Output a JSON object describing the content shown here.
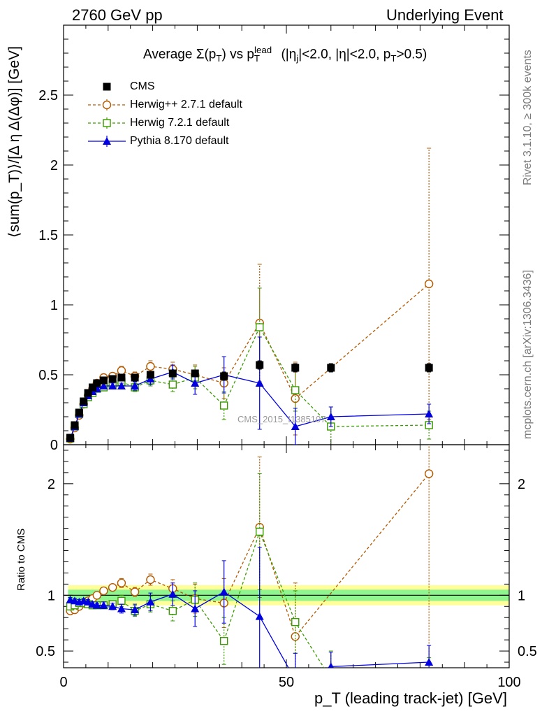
{
  "header": {
    "left": "2760 GeV pp",
    "right": "Underlying Event"
  },
  "side_labels": {
    "rivet": "Rivet 3.1.10, ≥ 300k events",
    "mcplots": "mcplots.cern.ch [arXiv:1306.3436]"
  },
  "watermark": "CMS_2015_I1385107",
  "titles": {
    "plot_title_pre": "Average Σ(p",
    "plot_title_post": ") vs p",
    "plot_title_tail": " (|η",
    "plot_title_tail2": "|<2.0, |η|<2.0, p",
    "plot_title_tail3": ">0.5)",
    "ylabel_main": "⟨sum(p_T)⟩/[Δ η Δ(Δφ)] [GeV]",
    "ylabel_ratio": "Ratio to CMS",
    "xlabel": "p_T (leading track-jet) [GeV]"
  },
  "legend": [
    {
      "label": "CMS",
      "color": "#000000",
      "marker": "square-filled",
      "style": "none"
    },
    {
      "label": "Herwig++ 2.7.1 default",
      "color": "#b35900",
      "marker": "circle-open",
      "style": "dashed"
    },
    {
      "label": "Herwig 7.2.1 default",
      "color": "#3a9a00",
      "marker": "square-open",
      "style": "dashed"
    },
    {
      "label": "Pythia 8.170 default",
      "color": "#0000e0",
      "marker": "triangle-filled",
      "style": "solid"
    }
  ],
  "chart_data": {
    "type": "line",
    "x": [
      1.5,
      2.5,
      3.5,
      4.5,
      5.5,
      6.5,
      7.5,
      9,
      11,
      13,
      16,
      19.5,
      24.5,
      29.5,
      36,
      44,
      52,
      60,
      82
    ],
    "xlim": [
      0,
      100
    ],
    "main_ylim": [
      0,
      3
    ],
    "main_yticks": [
      0,
      0.5,
      1,
      1.5,
      2,
      2.5
    ],
    "main_ytick_labels": [
      "0",
      "0.5",
      "1",
      "1.5",
      "2",
      "2.5"
    ],
    "ratio_ylim": [
      0.35,
      2.35
    ],
    "ratio_yticks": [
      0.5,
      1,
      2
    ],
    "ratio_ytick_labels": [
      "0.5",
      "1",
      "2"
    ],
    "xticks": [
      0,
      50,
      100
    ],
    "xtick_labels": [
      "0",
      "50",
      "100"
    ],
    "series": [
      {
        "name": "CMS",
        "values": [
          0.05,
          0.14,
          0.23,
          0.31,
          0.37,
          0.41,
          0.44,
          0.46,
          0.47,
          0.48,
          0.48,
          0.5,
          0.51,
          0.51,
          0.49,
          0.57,
          0.55,
          0.55,
          0.55
        ],
        "errors": [
          0.01,
          0.01,
          0.01,
          0.01,
          0.01,
          0.01,
          0.01,
          0.01,
          0.01,
          0.01,
          0.01,
          0.01,
          0.02,
          0.02,
          0.03,
          0.03,
          0.03,
          0.03,
          0.03
        ]
      },
      {
        "name": "Herwig++ 2.7.1 default",
        "values": [
          0.04,
          0.12,
          0.21,
          0.29,
          0.35,
          0.4,
          0.44,
          0.48,
          0.49,
          0.53,
          0.49,
          0.56,
          0.54,
          0.5,
          0.44,
          0.87,
          0.33,
          null,
          1.15
        ],
        "errors": [
          0.01,
          0.01,
          0.01,
          0.01,
          0.01,
          0.01,
          0.02,
          0.02,
          0.02,
          0.03,
          0.03,
          0.04,
          0.05,
          0.07,
          0.11,
          0.42,
          0.26,
          null,
          0.97
        ]
      },
      {
        "name": "Herwig 7.2.1 default",
        "values": [
          0.045,
          0.13,
          0.22,
          0.29,
          0.34,
          0.37,
          0.4,
          0.41,
          0.43,
          0.45,
          0.41,
          0.46,
          0.43,
          0.48,
          0.28,
          0.84,
          0.39,
          0.13,
          0.14
        ],
        "errors": [
          0.01,
          0.01,
          0.01,
          0.01,
          0.01,
          0.01,
          0.01,
          0.02,
          0.02,
          0.03,
          0.03,
          0.04,
          0.05,
          0.08,
          0.1,
          0.28,
          0.15,
          0.14,
          0.1
        ]
      },
      {
        "name": "Pythia 8.170 default",
        "values": [
          0.045,
          0.13,
          0.22,
          0.3,
          0.35,
          0.38,
          0.4,
          0.42,
          0.42,
          0.42,
          0.42,
          0.47,
          0.52,
          0.44,
          0.5,
          0.44,
          0.13,
          0.2,
          0.22
        ],
        "errors": [
          0.01,
          0.01,
          0.01,
          0.01,
          0.01,
          0.01,
          0.01,
          0.02,
          0.02,
          0.02,
          0.03,
          0.04,
          0.05,
          0.08,
          0.13,
          0.33,
          0.13,
          0.07,
          0.07
        ]
      }
    ],
    "ratio_series": [
      {
        "name": "Herwig++ 2.7.1 default",
        "values": [
          0.86,
          0.87,
          0.9,
          0.93,
          0.95,
          0.97,
          1.0,
          1.04,
          1.07,
          1.11,
          1.03,
          1.14,
          1.06,
          0.97,
          0.93,
          1.61,
          0.63,
          null,
          2.09
        ],
        "errors": [
          0.02,
          0.02,
          0.02,
          0.02,
          0.02,
          0.02,
          0.03,
          0.03,
          0.03,
          0.04,
          0.04,
          0.05,
          0.08,
          0.13,
          0.22,
          0.63,
          0.48,
          null,
          1.9
        ]
      },
      {
        "name": "Herwig 7.2.1 default",
        "values": [
          0.9,
          0.91,
          0.93,
          0.93,
          0.92,
          0.91,
          0.91,
          0.91,
          0.92,
          0.95,
          0.86,
          0.92,
          0.86,
          0.96,
          0.59,
          1.57,
          0.76,
          0.25,
          0.25
        ],
        "errors": [
          0.02,
          0.02,
          0.02,
          0.02,
          0.02,
          0.02,
          0.02,
          0.03,
          0.03,
          0.05,
          0.05,
          0.07,
          0.09,
          0.15,
          0.21,
          0.52,
          0.28,
          0.25,
          0.19
        ]
      },
      {
        "name": "Pythia 8.170 default",
        "values": [
          0.96,
          0.95,
          0.94,
          0.95,
          0.94,
          0.92,
          0.91,
          0.91,
          0.9,
          0.88,
          0.87,
          0.94,
          1.01,
          0.88,
          1.03,
          0.81,
          0.24,
          0.36,
          0.4
        ],
        "errors": [
          0.02,
          0.02,
          0.02,
          0.02,
          0.02,
          0.02,
          0.02,
          0.03,
          0.03,
          0.04,
          0.05,
          0.08,
          0.1,
          0.16,
          0.28,
          0.62,
          0.24,
          0.13,
          0.15
        ]
      }
    ],
    "ratio_band_inner": 0.05,
    "ratio_band_outer": 0.09,
    "band_colors": {
      "inner": "#8ff58f",
      "outer": "#ffff99"
    }
  }
}
